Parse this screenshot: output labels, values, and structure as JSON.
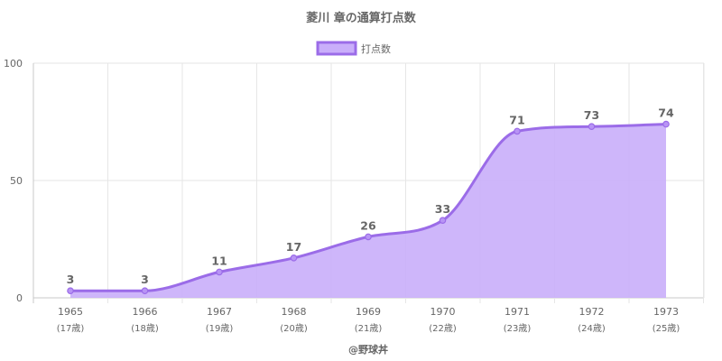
{
  "chart_data": {
    "type": "area",
    "title": "菱川 章の通算打点数",
    "legend": {
      "placement": "top",
      "label": "打点数"
    },
    "categories": [
      "1965",
      "1966",
      "1967",
      "1968",
      "1969",
      "1970",
      "1971",
      "1972",
      "1973"
    ],
    "category_sublabels": [
      "(17歳)",
      "(18歳)",
      "(19歳)",
      "(20歳)",
      "(21歳)",
      "(22歳)",
      "(23歳)",
      "(24歳)",
      "(25歳)"
    ],
    "series": [
      {
        "name": "打点数",
        "values": [
          3,
          3,
          11,
          17,
          26,
          33,
          71,
          73,
          74
        ]
      }
    ],
    "ylim": [
      0,
      100
    ],
    "yticks": [
      0,
      50,
      100
    ],
    "grid": true,
    "colors": {
      "line": "#9b6ce8",
      "fill": "#c9aefa",
      "point": "#b894f5",
      "grid": "#e6e6e6",
      "axis": "#c8c8c8"
    },
    "credit": "@野球丼"
  }
}
